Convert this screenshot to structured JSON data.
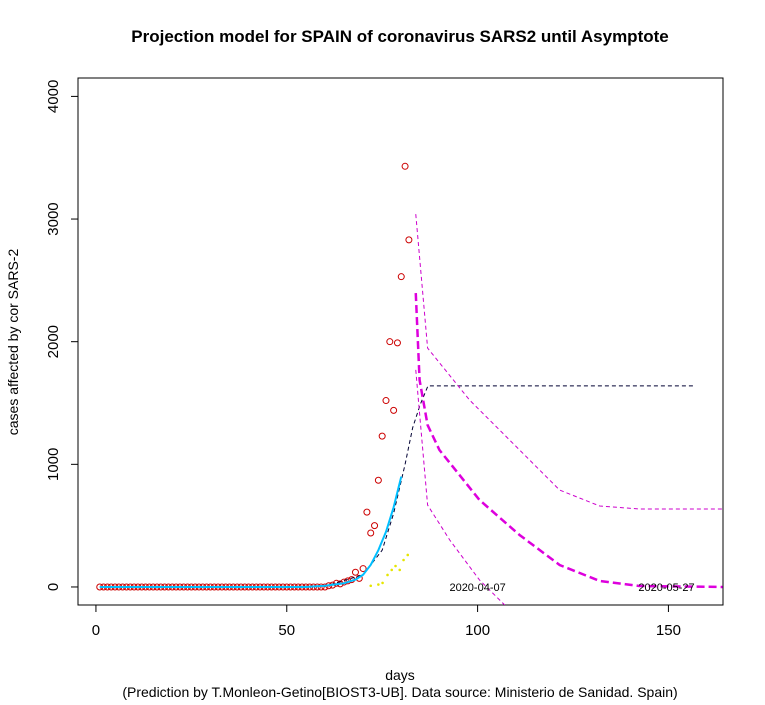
{
  "chart_data": {
    "type": "line",
    "title": "Projection model for SPAIN of coronavirus SARS2 until Asymptote",
    "x_label": "days",
    "y_label": "cases affected by cor SARS-2",
    "subtitle": "(Prediction by T.Monleon-Getino[BIOST3-UB]. Data source: Ministerio de Sanidad. Spain)",
    "xlim": [
      -4.7,
      164.3
    ],
    "ylim": [
      -147,
      4150
    ],
    "xticks": [
      0,
      50,
      100,
      150
    ],
    "yticks": [
      0,
      1000,
      2000,
      3000,
      4000
    ],
    "series": [
      {
        "kind": "points",
        "color": "#cc0000",
        "x": [
          1,
          2,
          3,
          4,
          5,
          6,
          7,
          8,
          9,
          10,
          11,
          12,
          13,
          14,
          15,
          16,
          17,
          18,
          19,
          20,
          21,
          22,
          23,
          24,
          25,
          26,
          27,
          28,
          29,
          30,
          31,
          32,
          33,
          34,
          35,
          36,
          37,
          38,
          39,
          40,
          41,
          42,
          43,
          44,
          45,
          46,
          47,
          48,
          49,
          50,
          51,
          52,
          53,
          54,
          55,
          56,
          57,
          58,
          59,
          60,
          61,
          62,
          63,
          64,
          65,
          66,
          67,
          68,
          69,
          70,
          71,
          72,
          73,
          74,
          75,
          76,
          77,
          78,
          79,
          80,
          81,
          82
        ],
        "values": [
          0,
          0,
          0,
          0,
          0,
          0,
          0,
          0,
          0,
          0,
          0,
          0,
          0,
          0,
          0,
          0,
          0,
          0,
          0,
          0,
          0,
          0,
          0,
          0,
          0,
          0,
          0,
          0,
          0,
          0,
          0,
          0,
          0,
          0,
          0,
          0,
          0,
          0,
          0,
          0,
          0,
          0,
          0,
          0,
          0,
          0,
          0,
          0,
          0,
          0,
          0,
          0,
          0,
          0,
          0,
          0,
          0,
          0,
          0,
          0,
          10,
          15,
          30,
          25,
          40,
          50,
          60,
          120,
          70,
          150,
          610,
          440,
          500,
          870,
          1230,
          1520,
          2000,
          1440,
          1990,
          2530,
          3430,
          2830
        ]
      },
      {
        "kind": "dots",
        "color": "#e6e600",
        "x": [
          72,
          74,
          75.1,
          76.4,
          77.5,
          78.5,
          79.6,
          80.6,
          81.7
        ],
        "values": [
          10,
          20,
          33,
          98,
          139,
          171,
          139,
          220,
          261
        ]
      },
      {
        "kind": "line",
        "color": "#000033",
        "dash": "4,3",
        "width": 1,
        "x": [
          1,
          60,
          70,
          75,
          78,
          81,
          83,
          85,
          87,
          157
        ],
        "values": [
          0,
          5,
          100,
          300,
          600,
          1000,
          1300,
          1490,
          1640,
          1640
        ]
      },
      {
        "kind": "line",
        "color": "#00bfff",
        "dash": "none",
        "width": 2,
        "x": [
          1,
          55,
          60,
          65,
          68,
          70,
          72,
          74,
          76,
          78,
          80
        ],
        "values": [
          0,
          0,
          10,
          30,
          60,
          100,
          180,
          300,
          450,
          650,
          900
        ]
      },
      {
        "kind": "line",
        "color": "#dd00dd",
        "dash": "8,4",
        "width": 2.5,
        "x": [
          83.8,
          84.8,
          86.9,
          90,
          100.5,
          111,
          121.5,
          132,
          142.4,
          164.2
        ],
        "values": [
          2396,
          1687,
          1320,
          1117,
          709,
          424,
          179,
          49,
          8,
          0
        ]
      },
      {
        "kind": "line",
        "color": "#cc00cc",
        "dash": "4,3",
        "width": 1,
        "x": [
          83.8,
          86.9,
          97.9,
          111,
          121.5,
          132,
          142.4,
          164.2
        ],
        "values": [
          3040,
          1948,
          1524,
          1117,
          790,
          660,
          636,
          636
        ]
      },
      {
        "kind": "line",
        "color": "#cc00cc",
        "dash": "4,3",
        "width": 1,
        "x": [
          83.8,
          86.9,
          92.7,
          100.5,
          107.1
        ],
        "values": [
          1770,
          668,
          383,
          57,
          -147
        ]
      }
    ],
    "annotations": [
      {
        "text": "2020-04-07",
        "x": 100,
        "y": 0
      },
      {
        "text": "2020-05-27",
        "x": 149.5,
        "y": 0
      }
    ]
  }
}
